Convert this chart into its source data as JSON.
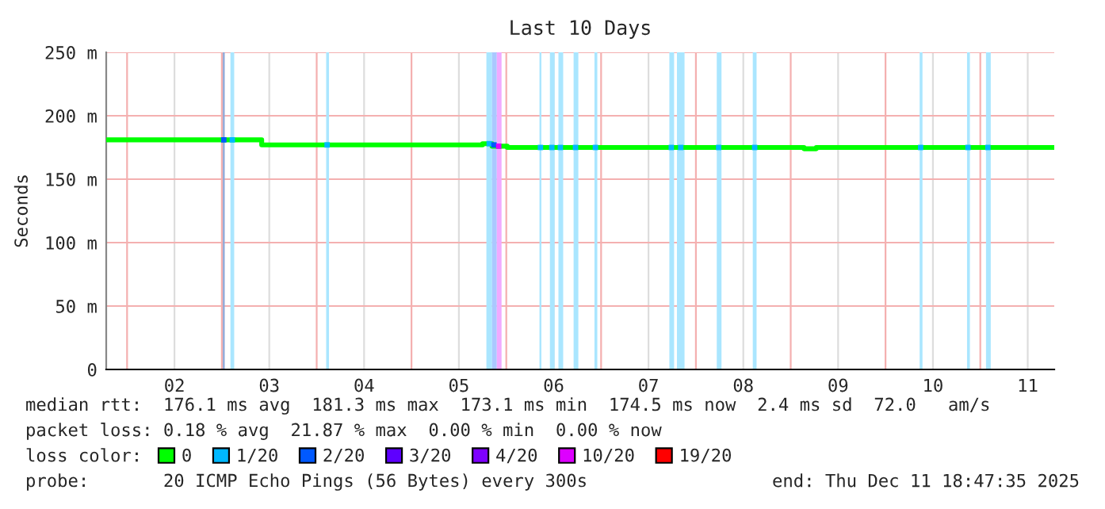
{
  "chart_data": {
    "type": "step",
    "title": "Last 10 Days",
    "ylabel": "Seconds",
    "xlim": [
      1.78,
      11.78
    ],
    "xticks": [
      {
        "value": 2,
        "label": null
      },
      {
        "value": 2.5,
        "label": "02"
      },
      {
        "value": 3,
        "label": null
      },
      {
        "value": 3.5,
        "label": "03"
      },
      {
        "value": 4,
        "label": null
      },
      {
        "value": 4.5,
        "label": "04"
      },
      {
        "value": 5,
        "label": null
      },
      {
        "value": 5.5,
        "label": "05"
      },
      {
        "value": 6,
        "label": null
      },
      {
        "value": 6.5,
        "label": "06"
      },
      {
        "value": 7,
        "label": null
      },
      {
        "value": 7.5,
        "label": "07"
      },
      {
        "value": 8,
        "label": null
      },
      {
        "value": 8.5,
        "label": "08"
      },
      {
        "value": 9,
        "label": null
      },
      {
        "value": 9.5,
        "label": "09"
      },
      {
        "value": 10,
        "label": null
      },
      {
        "value": 10.5,
        "label": "10"
      },
      {
        "value": 11,
        "label": null
      },
      {
        "value": 11.5,
        "label": "11"
      }
    ],
    "ylim": [
      0,
      250
    ],
    "yticks": [
      0,
      {
        "value": 50,
        "label": "50 m"
      },
      {
        "value": 100,
        "label": "100 m"
      },
      {
        "value": 150,
        "label": "150 m"
      },
      {
        "value": 200,
        "label": "200 m"
      },
      {
        "value": 250,
        "label": "250 m"
      }
    ],
    "grid": true,
    "legend": "bottom",
    "marker": "square",
    "line_style": "solid",
    "series": [
      {
        "name": "0",
        "color": "#00ff00",
        "marker": "none",
        "x": [
          1.78,
          3.42,
          5.75,
          5.85,
          6.01,
          9.14,
          9.27,
          11.78
        ],
        "values": [
          181,
          177,
          178,
          176,
          175,
          174,
          175,
          175
        ]
      },
      {
        "name": "1/20",
        "color": "#00b8ff",
        "type": "scatter",
        "x": [
          3.11,
          4.11,
          5.82,
          6.36,
          6.48,
          6.57,
          6.73,
          6.94,
          7.74,
          7.84,
          8.24,
          8.62,
          10.37,
          10.87,
          11.08
        ],
        "values": [
          181,
          177,
          178,
          175,
          175,
          175,
          175,
          175,
          175,
          175,
          175,
          175,
          175,
          175,
          175
        ]
      },
      {
        "name": "2/20",
        "color": "#0059ff",
        "type": "scatter",
        "x": [
          3.02,
          5.87
        ],
        "values": [
          181,
          177
        ]
      },
      {
        "name": "3/20",
        "color": "#5e00ff",
        "type": "scatter"
      },
      {
        "name": "4/20",
        "color": "#7e00ff",
        "type": "scatter"
      },
      {
        "name": "10/20",
        "color": "#dd00ff",
        "type": "scatter",
        "x": [
          5.92
        ],
        "values": [
          176
        ]
      },
      {
        "name": "19/20",
        "color": "#ff0000",
        "type": "scatter"
      }
    ],
    "bands": [
      {
        "axis": "x",
        "from": 3.01,
        "to": 3.03,
        "color": "#8fa8d8"
      },
      {
        "axis": "x",
        "from": 3.09,
        "to": 3.13,
        "color": "#aae6ff"
      },
      {
        "axis": "x",
        "from": 4.1,
        "to": 4.13,
        "color": "#aae6ff"
      },
      {
        "axis": "x",
        "from": 5.79,
        "to": 5.85,
        "color": "#aae6ff"
      },
      {
        "axis": "x",
        "from": 5.85,
        "to": 5.9,
        "color": "#aac8ff"
      },
      {
        "axis": "x",
        "from": 5.9,
        "to": 5.95,
        "color": "#f0aaff"
      },
      {
        "axis": "x",
        "from": 6.35,
        "to": 6.37,
        "color": "#aae6ff"
      },
      {
        "axis": "x",
        "from": 6.46,
        "to": 6.51,
        "color": "#aae6ff"
      },
      {
        "axis": "x",
        "from": 6.55,
        "to": 6.6,
        "color": "#aae6ff"
      },
      {
        "axis": "x",
        "from": 6.71,
        "to": 6.76,
        "color": "#aae6ff"
      },
      {
        "axis": "x",
        "from": 6.93,
        "to": 6.96,
        "color": "#aae6ff"
      },
      {
        "axis": "x",
        "from": 7.72,
        "to": 7.77,
        "color": "#aae6ff"
      },
      {
        "axis": "x",
        "from": 7.8,
        "to": 7.88,
        "color": "#aae6ff"
      },
      {
        "axis": "x",
        "from": 8.22,
        "to": 8.27,
        "color": "#aae6ff"
      },
      {
        "axis": "x",
        "from": 8.6,
        "to": 8.64,
        "color": "#aae6ff"
      },
      {
        "axis": "x",
        "from": 10.36,
        "to": 10.39,
        "color": "#aae6ff"
      },
      {
        "axis": "x",
        "from": 10.86,
        "to": 10.89,
        "color": "#aae6ff"
      },
      {
        "axis": "x",
        "from": 11.06,
        "to": 11.11,
        "color": "#aae6ff"
      }
    ],
    "annotations": [
      "median rtt:  176.1 ms avg  181.3 ms max  173.1 ms min  174.5 ms now  2.4 ms sd  72.0   am/s",
      "packet loss: 0.18 % avg  21.87 % max  0.00 % min  0.00 % now",
      "loss color:",
      "probe:       20 ICMP Echo Pings (56 Bytes) every 300s",
      "end: Thu Dec 11 18:47:35 2025"
    ]
  }
}
